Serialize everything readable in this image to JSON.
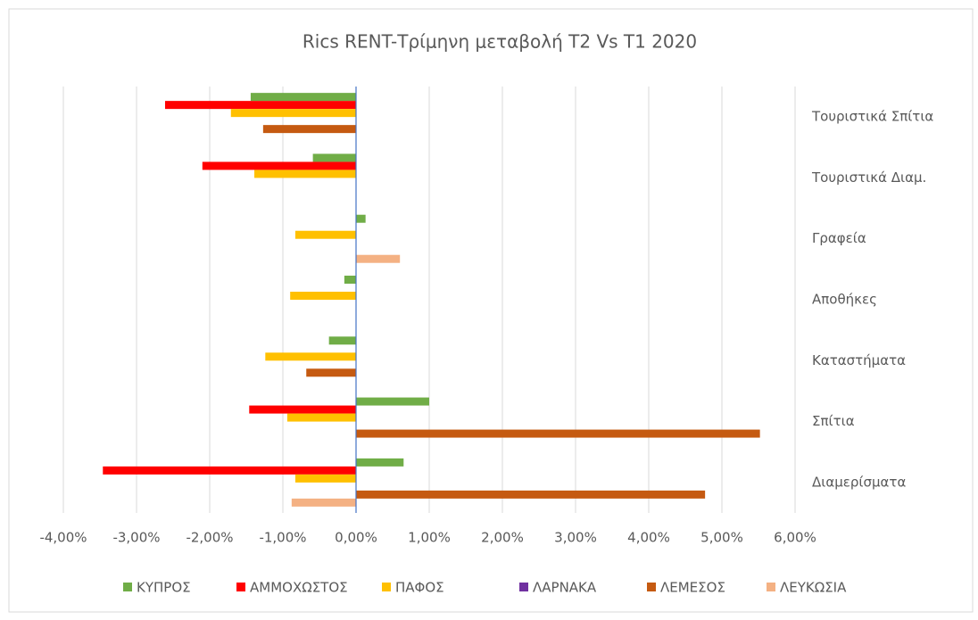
{
  "chart_data": {
    "type": "hbar",
    "title": "Rics RENT-Τρίμηνη μεταβολή Τ2 Vs T1 2020",
    "categories": [
      "Διαμερίσματα",
      "Σπίτια",
      "Καταστήματα",
      "Αποθήκες",
      "Γραφεία",
      "Τουριστικά Διαμ.",
      "Τουριστικά Σπίτια"
    ],
    "series": [
      {
        "name": "ΚΥΠΡΟΣ",
        "color": "#70ad47",
        "values": [
          0.65,
          1.0,
          -0.37,
          -0.16,
          0.13,
          -0.59,
          -1.44
        ]
      },
      {
        "name": "ΑΜΜΟΧΩΣΤΟΣ",
        "color": "#ff0000",
        "values": [
          -3.46,
          -1.46,
          null,
          null,
          null,
          -2.1,
          -2.61
        ]
      },
      {
        "name": "ΠΑΦΟΣ",
        "color": "#ffc000",
        "values": [
          -0.83,
          -0.94,
          -1.24,
          -0.9,
          -0.83,
          -1.39,
          -1.71
        ]
      },
      {
        "name": "ΛΑΡΝΑΚΑ",
        "color": "#7030a0",
        "values": [
          null,
          null,
          null,
          null,
          null,
          null,
          null
        ]
      },
      {
        "name": "ΛΕΜΕΣΟΣ",
        "color": "#c55a11",
        "values": [
          4.77,
          5.52,
          -0.68,
          null,
          null,
          null,
          -1.27
        ]
      },
      {
        "name": "ΛΕΥΚΩΣΙΑ",
        "color": "#f4b183",
        "values": [
          -0.88,
          null,
          null,
          null,
          0.6,
          null,
          null
        ]
      }
    ],
    "xlim": [
      -4,
      6
    ],
    "xticks": [
      {
        "value": -4,
        "label": "-4,00%"
      },
      {
        "value": -3,
        "label": "-3,00%"
      },
      {
        "value": -2,
        "label": "-2,00%"
      },
      {
        "value": -1,
        "label": "-1,00%"
      },
      {
        "value": 0,
        "label": "0,00%"
      },
      {
        "value": 1,
        "label": "1,00%"
      },
      {
        "value": 2,
        "label": "2,00%"
      },
      {
        "value": 3,
        "label": "3,00%"
      },
      {
        "value": 4,
        "label": "4,00%"
      },
      {
        "value": 5,
        "label": "5,00%"
      },
      {
        "value": 6,
        "label": "6,00%"
      }
    ],
    "grid": true,
    "legend": "bottom"
  }
}
